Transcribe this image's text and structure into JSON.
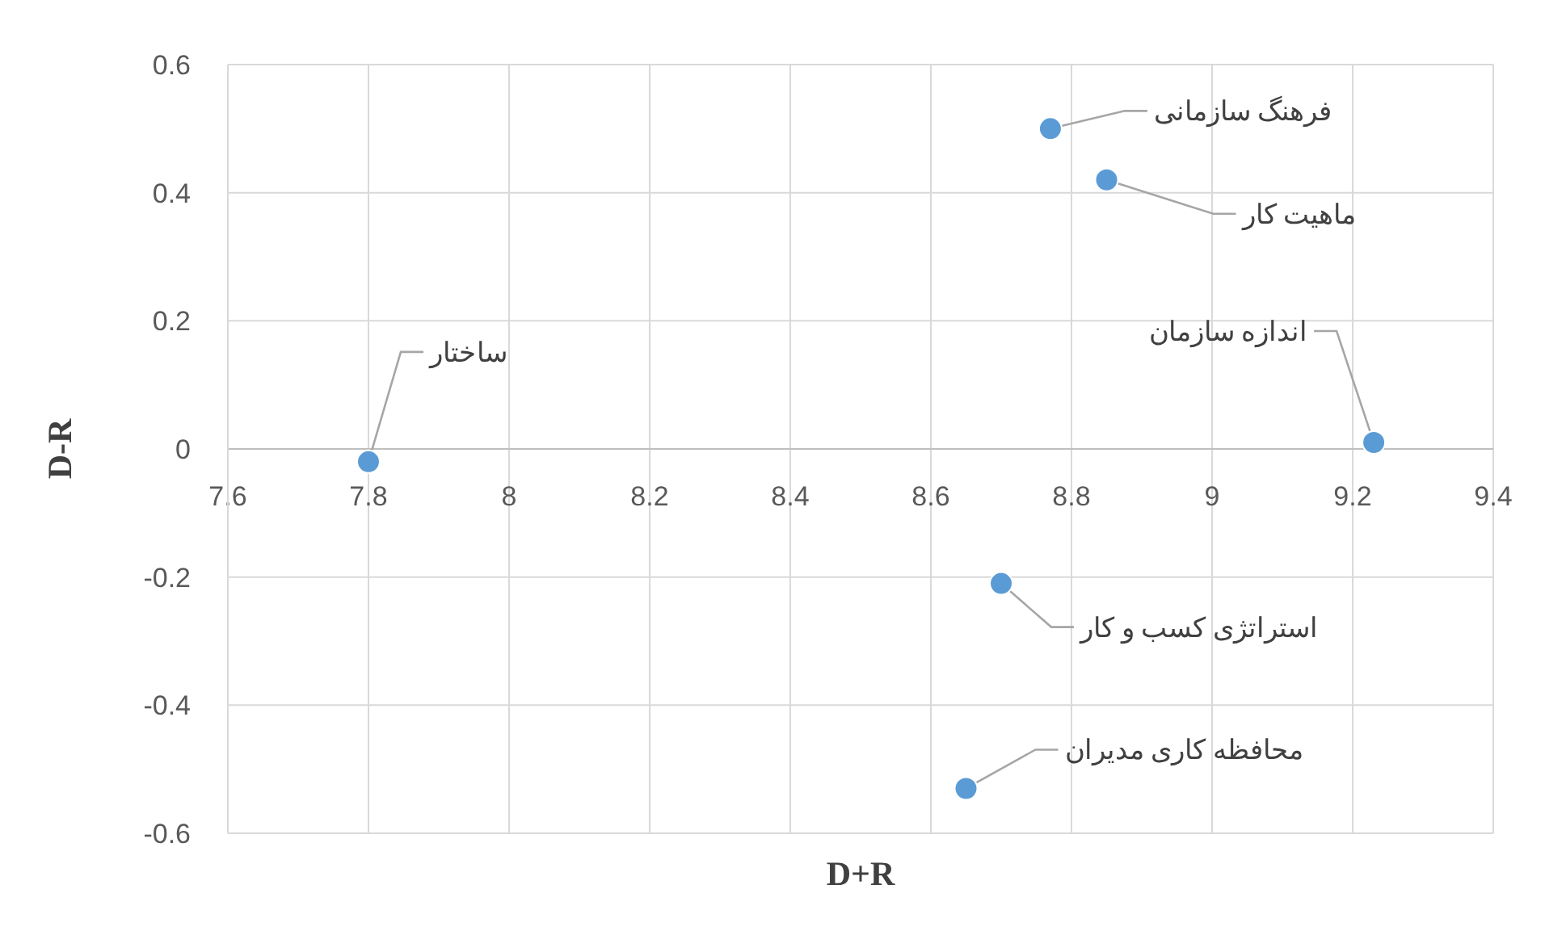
{
  "chart_data": {
    "type": "scatter",
    "xlabel": "D+R",
    "ylabel": "D-R",
    "x": [
      7.8,
      8.77,
      8.85,
      9.23,
      8.7,
      8.65
    ],
    "values": [
      -0.02,
      0.5,
      0.42,
      0.01,
      -0.21,
      -0.53
    ],
    "color": "#5b9bd5",
    "marker": "circle",
    "xlim": [
      7.6,
      9.4
    ],
    "xticks": [
      7.6,
      7.8,
      8,
      8.2,
      8.4,
      8.6,
      8.8,
      9,
      9.2,
      9.4
    ],
    "ylim": [
      -0.6,
      0.6
    ],
    "yticks": [
      -0.6,
      -0.4,
      -0.2,
      0,
      0.2,
      0.4,
      0.6
    ],
    "grid": true,
    "annotations": [
      {
        "text": "ساختار",
        "x": 7.8,
        "y": -0.02
      },
      {
        "text": "فرهنگ سازمانی",
        "x": 8.77,
        "y": 0.5
      },
      {
        "text": "ماهیت کار",
        "x": 8.85,
        "y": 0.42
      },
      {
        "text": "اندازه سازمان",
        "x": 9.23,
        "y": 0.01
      },
      {
        "text": "استراتژی کسب و کار",
        "x": 8.7,
        "y": -0.21
      },
      {
        "text": "محافظه کاری مدیران",
        "x": 8.65,
        "y": -0.53
      }
    ]
  }
}
